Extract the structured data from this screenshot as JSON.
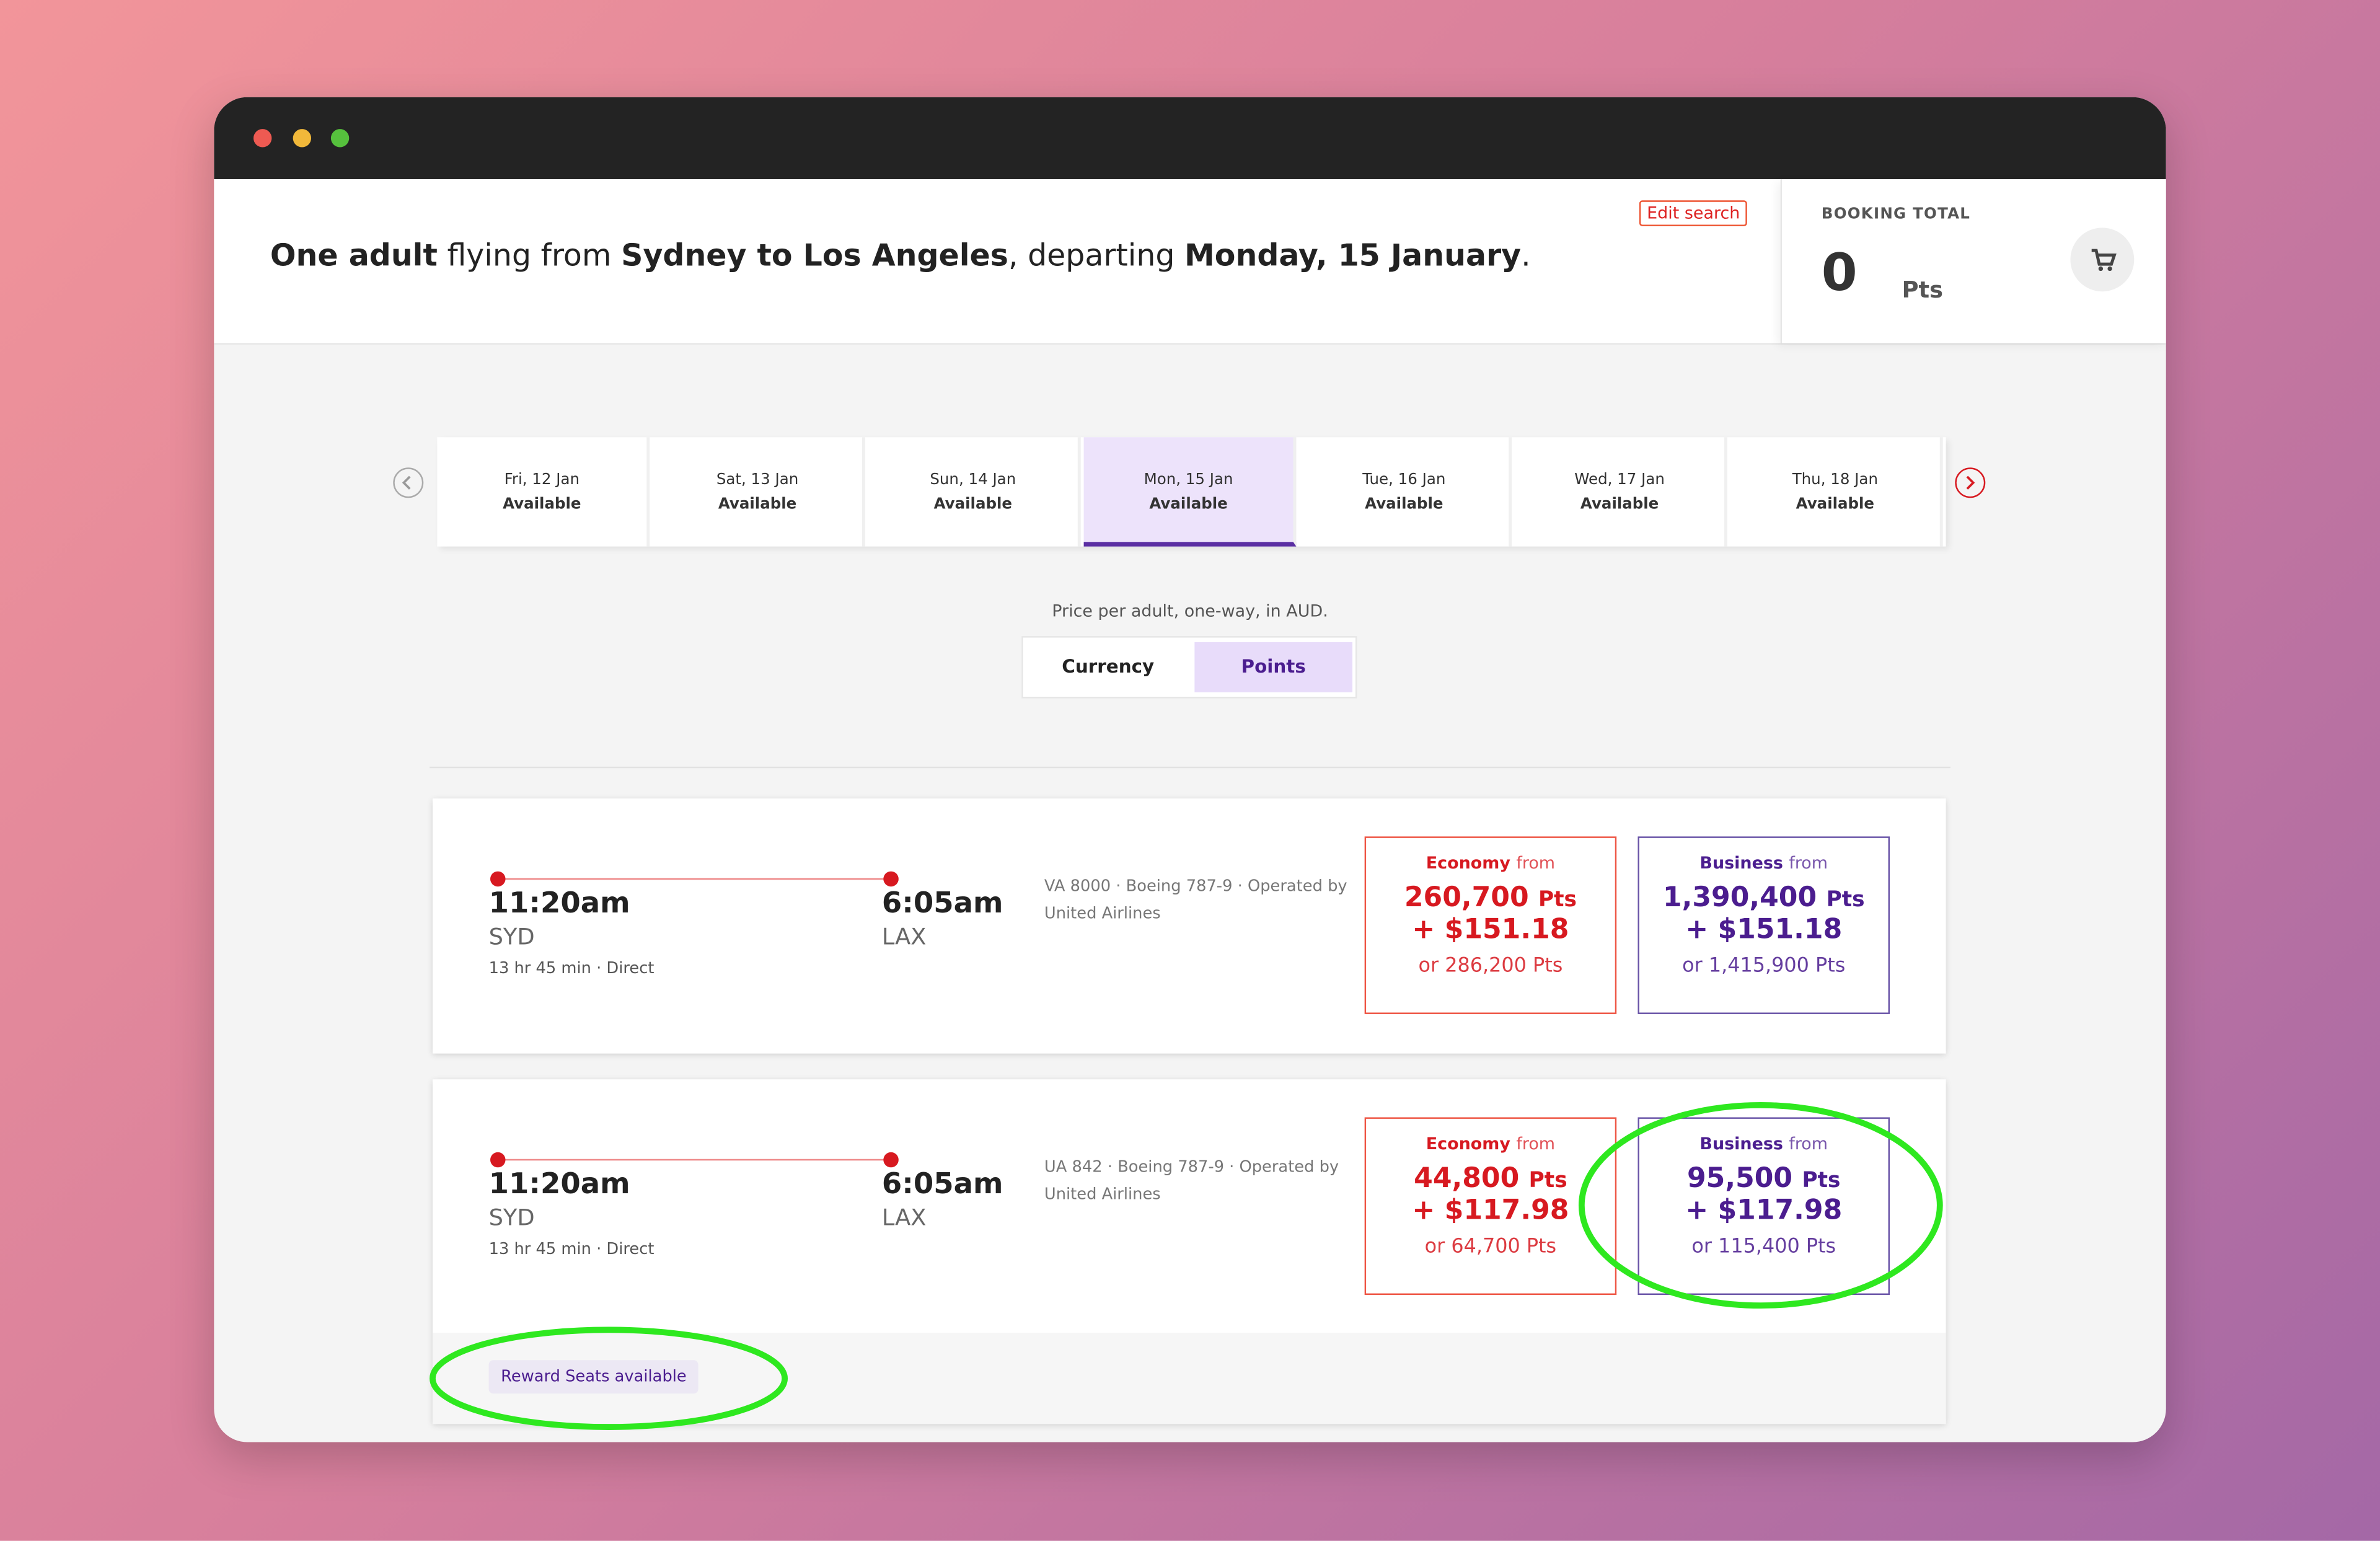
{
  "header": {
    "summary": [
      "One adult",
      " flying from ",
      "Sydney to Los Angeles",
      ", departing ",
      "Monday, 15 January",
      "."
    ],
    "edit_search": "Edit search",
    "booking_total": {
      "label": "BOOKING TOTAL",
      "amount": 0,
      "unit": "Pts"
    }
  },
  "dates": [
    {
      "day": "Fri, 12 Jan",
      "status": "Available"
    },
    {
      "day": "Sat, 13 Jan",
      "status": "Available"
    },
    {
      "day": "Sun, 14 Jan",
      "status": "Available"
    },
    {
      "day": "Mon, 15 Jan",
      "status": "Available",
      "selected": true
    },
    {
      "day": "Tue, 16 Jan",
      "status": "Available"
    },
    {
      "day": "Wed, 17 Jan",
      "status": "Available"
    },
    {
      "day": "Thu, 18 Jan",
      "status": "Available"
    }
  ],
  "price_note": "Price per adult, one-way, in AUD.",
  "toggle": [
    "Currency",
    "Points"
  ],
  "flights": [
    {
      "depart_time": "11:20am",
      "depart_code": "SYD",
      "arrive_time": "6:05am",
      "arrive_code": "LAX",
      "duration": "13 hr 45 min · Direct",
      "info": "VA 8000 · Boeing 787-9 · Operated by United Airlines",
      "fares": [
        {
          "cabin": "Economy",
          "from": "from",
          "points": "260,700",
          "unit": "Pts",
          "cash": "+ $151.18",
          "alt": "or 286,200 Pts"
        },
        {
          "cabin": "Business",
          "from": "from",
          "points": "1,390,400",
          "unit": "Pts",
          "cash": "+ $151.18",
          "alt": "or 1,415,900 Pts"
        }
      ]
    },
    {
      "depart_time": "11:20am",
      "depart_code": "SYD",
      "arrive_time": "6:05am",
      "arrive_code": "LAX",
      "duration": "13 hr 45 min · Direct",
      "info": "UA 842 · Boeing 787-9 · Operated by United Airlines",
      "fares": [
        {
          "cabin": "Economy",
          "from": "from",
          "points": "44,800",
          "unit": "Pts",
          "cash": "+ $117.98",
          "alt": "or 64,700 Pts"
        },
        {
          "cabin": "Business",
          "from": "from",
          "points": "95,500",
          "unit": "Pts",
          "cash": "+ $117.98",
          "alt": "or 115,400 Pts"
        }
      ],
      "badge": "Reward Seats available"
    }
  ]
}
